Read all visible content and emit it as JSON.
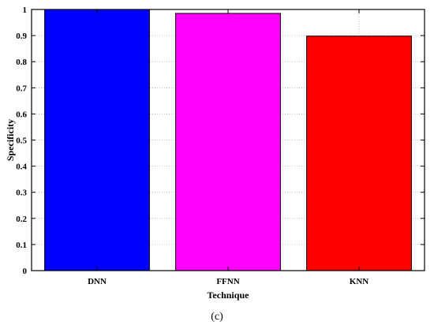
{
  "chart_data": {
    "type": "bar",
    "categories": [
      "DNN",
      "FFNN",
      "KNN"
    ],
    "values": [
      1.0,
      0.985,
      0.898
    ],
    "colors": [
      "#0000ff",
      "#ff00ff",
      "#ff0000"
    ],
    "xlabel": "Technique",
    "ylabel": "Specificity",
    "ylim": [
      0,
      1
    ],
    "yticks": [
      "0",
      "0.1",
      "0.2",
      "0.3",
      "0.4",
      "0.5",
      "0.6",
      "0.7",
      "0.8",
      "0.9",
      "1"
    ],
    "grid": true,
    "legend": "none"
  },
  "panel_label": "(c)"
}
